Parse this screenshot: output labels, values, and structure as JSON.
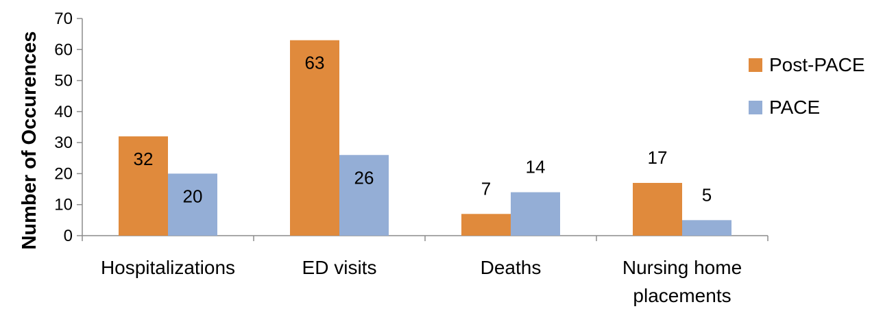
{
  "chart_data": {
    "type": "bar",
    "ylabel": "Number of Occurences",
    "ylim": [
      0,
      70
    ],
    "yticks": [
      0,
      10,
      20,
      30,
      40,
      50,
      60,
      70
    ],
    "grid": false,
    "legend_position": "right",
    "categories": [
      [
        "Hospitalizations"
      ],
      [
        "ED visits"
      ],
      [
        "Deaths"
      ],
      [
        "Nursing home",
        "placements"
      ]
    ],
    "series": [
      {
        "name": "Post-PACE",
        "color": "#e08a3c",
        "values": [
          32,
          63,
          7,
          17
        ],
        "labels": [
          "32",
          "63",
          "7",
          "17"
        ]
      },
      {
        "name": "PACE",
        "color": "#94aed6",
        "values": [
          20,
          26,
          14,
          5
        ],
        "labels": [
          "20",
          "26",
          "14",
          "5"
        ]
      }
    ]
  }
}
